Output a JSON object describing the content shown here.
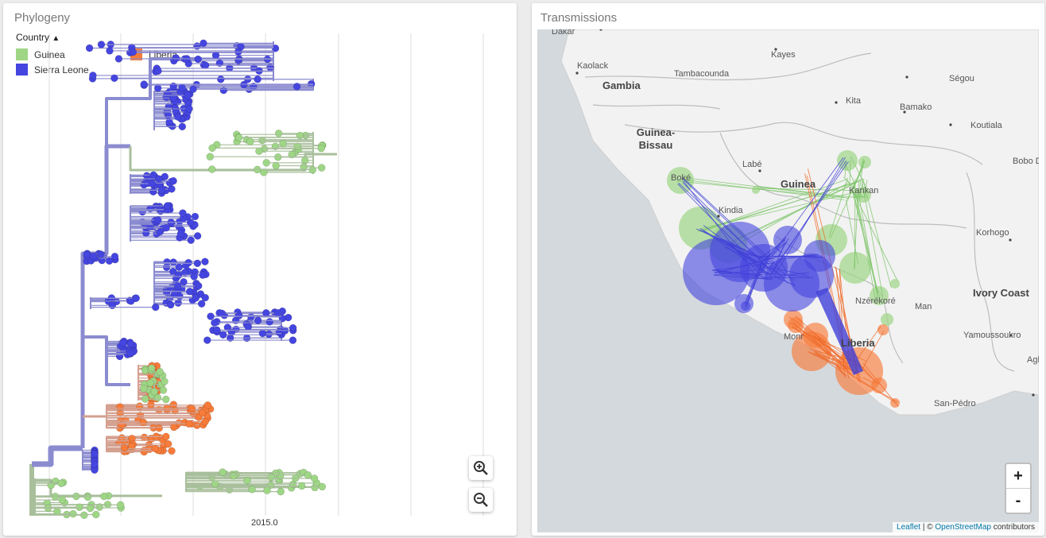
{
  "phylogeny": {
    "title": "Phylogeny",
    "legend": {
      "heading": "Country",
      "items": [
        {
          "label": "Guinea",
          "color": "#9ed686"
        },
        {
          "label": "Sierra Leone",
          "color": "#4545e0"
        },
        {
          "label": "Liberia",
          "color": "#f77b3a"
        }
      ]
    },
    "axis": {
      "tick_label": "2015.0"
    },
    "zoom_in_icon": "zoom-in-icon",
    "zoom_out_icon": "zoom-out-icon"
  },
  "transmissions": {
    "title": "Transmissions",
    "places": [
      "Dakar",
      "Kaolack",
      "Tambacounda",
      "Kayes",
      "Ségou",
      "Kita",
      "Bamako",
      "Koutiala",
      "Bobo D",
      "Labé",
      "Kankan",
      "Kindia",
      "Korhogo",
      "Man",
      "Nzérékoré",
      "Yamoussoukro",
      "Agb",
      "San-Pédro",
      "Boké",
      "Monr",
      "Bamako"
    ],
    "countries": [
      "Gambia",
      "Guinea-Bissau",
      "Guinea",
      "Ivory Coast",
      "Liberia"
    ],
    "zoom_in_label": "+",
    "zoom_out_label": "-",
    "attribution": {
      "leaflet": "Leaflet",
      "sep": "| ©",
      "osm": "OpenStreetMap",
      "suffix": "contributors"
    }
  }
}
